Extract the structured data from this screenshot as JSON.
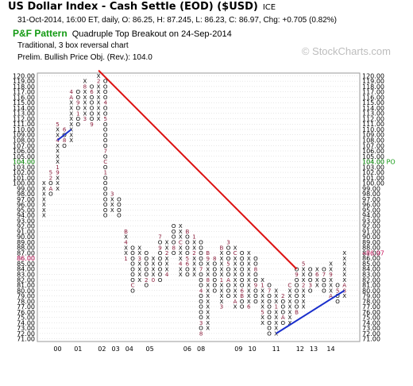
{
  "header": {
    "title": "US Dollar Index - Cash Settle (EOD) ($USD)",
    "exchange": "ICE",
    "quote": "31-Oct-2014, 16:00 ET, daily, O: 86.25, H: 87.245, L: 86.23, C: 86.97, Chg: +0.705 (0.82%)",
    "pattern_label": "P&F Pattern",
    "pattern_text": "Quadruple Top Breakout on 24-Sep-2014",
    "method": "Traditional, 3 box reversal chart",
    "price_objective": "Prelim. Bullish Price Obj. (Rev.): 104.0",
    "watermark": "© StockCharts.com"
  },
  "colors": {
    "x_mark": "#000000",
    "o_mark": "#000000",
    "month_mark": "#8b1c3a",
    "resistance_line": "#dd1111",
    "support_line": "#1a2fcc",
    "price_objective": "#129a12",
    "last_price": "#cc2266",
    "grid": "#cfcfcf"
  },
  "chart_data": {
    "type": "point-and-figure",
    "box_size": 1,
    "reversal": 3,
    "ylim": [
      71,
      120
    ],
    "y_ticks": [
      71,
      72,
      73,
      74,
      75,
      76,
      77,
      78,
      79,
      80,
      81,
      82,
      83,
      84,
      85,
      86,
      87,
      88,
      89,
      90,
      91,
      92,
      93,
      94,
      95,
      96,
      97,
      98,
      99,
      100,
      101,
      102,
      103,
      104,
      105,
      106,
      107,
      108,
      109,
      110,
      111,
      112,
      113,
      114,
      115,
      116,
      117,
      118,
      119,
      120
    ],
    "x_labels": [
      {
        "col": 2,
        "text": "00"
      },
      {
        "col": 5,
        "text": "01"
      },
      {
        "col": 8.5,
        "text": "02"
      },
      {
        "col": 10.5,
        "text": "03"
      },
      {
        "col": 12.5,
        "text": "04"
      },
      {
        "col": 15.5,
        "text": "05"
      },
      {
        "col": 21,
        "text": "06"
      },
      {
        "col": 23,
        "text": "08"
      },
      {
        "col": 28.5,
        "text": "09"
      },
      {
        "col": 30.5,
        "text": "10"
      },
      {
        "col": 34,
        "text": "11"
      },
      {
        "col": 37.5,
        "text": "12"
      },
      {
        "col": 39.5,
        "text": "13"
      },
      {
        "col": 42,
        "text": "14"
      }
    ],
    "columns": [
      {
        "col": 0,
        "type": "X",
        "low": 94,
        "high": 100,
        "marks": {
          "103": "7"
        }
      },
      {
        "col": 1,
        "type": "O",
        "low": 98,
        "high": 102,
        "marks": {
          "102": "5",
          "101": "2",
          "99": "A"
        }
      },
      {
        "col": 2,
        "type": "X",
        "low": 99,
        "high": 111,
        "marks": {
          "102": "9",
          "103": "1",
          "108": "4",
          "111": "5"
        }
      },
      {
        "col": 3,
        "type": "O",
        "low": 107,
        "high": 110,
        "marks": {
          "110": "6",
          "108": "8"
        }
      },
      {
        "col": 4,
        "type": "X",
        "low": 108,
        "high": 117,
        "marks": {
          "116": "A",
          "117": "4"
        }
      },
      {
        "col": 5,
        "type": "O",
        "low": 111,
        "high": 117,
        "marks": {
          "118": "6",
          "115": "9",
          "113": "1"
        }
      },
      {
        "col": 6,
        "type": "X",
        "low": 112,
        "high": 119,
        "marks": {
          "118": "8",
          "112": "3"
        }
      },
      {
        "col": 7,
        "type": "O",
        "low": 111,
        "high": 118,
        "marks": {
          "117": "6",
          "111": "9"
        }
      },
      {
        "col": 8,
        "type": "X",
        "low": 112,
        "high": 120,
        "marks": {
          "119": "2"
        }
      },
      {
        "col": 9,
        "type": "O",
        "low": 94,
        "high": 119,
        "marks": {
          "115": "4",
          "112": "5",
          "106": "7",
          "104": "C",
          "102": "1"
        }
      },
      {
        "col": 10,
        "type": "X",
        "low": 95,
        "high": 98,
        "marks": {
          "98": "3"
        }
      },
      {
        "col": 11,
        "type": "O",
        "low": 94,
        "high": 97,
        "marks": {
          "98": "9"
        }
      },
      {
        "col": 12,
        "type": "X",
        "low": 86,
        "high": 91,
        "marks": {
          "91": "B",
          "89": "4",
          "86": "1"
        }
      },
      {
        "col": 13,
        "type": "O",
        "low": 80,
        "high": 88,
        "marks": {
          "90": "C",
          "81": "C"
        }
      },
      {
        "col": 14,
        "type": "X",
        "low": 82,
        "high": 88,
        "marks": {
          "89": "4",
          "86": "3"
        }
      },
      {
        "col": 15,
        "type": "O",
        "low": 81,
        "high": 87,
        "marks": {
          "89": "7",
          "82": "2"
        }
      },
      {
        "col": 16,
        "type": "X",
        "low": 82,
        "high": 86,
        "marks": {
          "82": "0"
        }
      },
      {
        "col": 17,
        "type": "O",
        "low": 82,
        "high": 90,
        "marks": {
          "90": "7",
          "88": "9"
        }
      },
      {
        "col": 18,
        "type": "X",
        "low": 83,
        "high": 89,
        "marks": {
          "87": "2",
          "83": "4"
        }
      },
      {
        "col": 19,
        "type": "O",
        "low": 87,
        "high": 92,
        "marks": {
          "88": "8"
        }
      },
      {
        "col": 20,
        "type": "X",
        "low": 83,
        "high": 92,
        "marks": {
          "89": "C",
          "85": "4"
        }
      },
      {
        "col": 21,
        "type": "O",
        "low": 83,
        "high": 91,
        "marks": {
          "91": "B",
          "86": "5",
          "85": "6"
        }
      },
      {
        "col": 22,
        "type": "X",
        "low": 83,
        "high": 90,
        "marks": {
          "90": "1",
          "87": "2"
        }
      },
      {
        "col": 23,
        "type": "O",
        "low": 72,
        "high": 89,
        "marks": {
          "84": "7",
          "80": "4",
          "74": "3",
          "72": "8"
        }
      },
      {
        "col": 24,
        "type": "X",
        "low": 73,
        "high": 87,
        "marks": {
          "87": "B",
          "86": "9",
          "82": "8"
        }
      },
      {
        "col": 25,
        "type": "O",
        "low": 80,
        "high": 86,
        "marks": {
          "86": "8"
        }
      },
      {
        "col": 26,
        "type": "X",
        "low": 77,
        "high": 88,
        "marks": {
          "88": "B",
          "82": "1",
          "77": "3"
        }
      },
      {
        "col": 27,
        "type": "O",
        "low": 79,
        "high": 89,
        "marks": {
          "89": "3",
          "85": "5",
          "82": "A"
        }
      },
      {
        "col": 28,
        "type": "X",
        "low": 77,
        "high": 88,
        "marks": {
          "78": "A",
          "87": "C"
        }
      },
      {
        "col": 29,
        "type": "O",
        "low": 77,
        "high": 87,
        "marks": {
          "88": "2",
          "80": "6",
          "79": "B"
        }
      },
      {
        "col": 30,
        "type": "X",
        "low": 77,
        "high": 87,
        "marks": {
          "77": "6"
        }
      },
      {
        "col": 31,
        "type": "O",
        "low": 78,
        "high": 86,
        "marks": {
          "84": "8",
          "81": "9"
        }
      },
      {
        "col": 32,
        "type": "X",
        "low": 74,
        "high": 82,
        "marks": {
          "81": "1",
          "76": "5"
        }
      },
      {
        "col": 33,
        "type": "O",
        "low": 72,
        "high": 81,
        "marks": {
          "80": "7"
        }
      },
      {
        "col": 34,
        "type": "X",
        "low": 72,
        "high": 80,
        "marks": {
          "77": "1"
        }
      },
      {
        "col": 35,
        "type": "O",
        "low": 74,
        "high": 79,
        "marks": {
          "79": "2",
          "75": "A"
        }
      },
      {
        "col": 36,
        "type": "X",
        "low": 74,
        "high": 81,
        "marks": {
          "81": "C"
        }
      },
      {
        "col": 37,
        "type": "O",
        "low": 76,
        "high": 84,
        "marks": {
          "83": "9",
          "76": "B"
        }
      },
      {
        "col": 38,
        "type": "X",
        "low": 77,
        "high": 85,
        "marks": {
          "85": "5",
          "81": "2"
        }
      },
      {
        "col": 39,
        "type": "O",
        "low": 80,
        "high": 84,
        "marks": {
          "81": "3"
        }
      },
      {
        "col": 40,
        "type": "X",
        "low": 81,
        "high": 84,
        "marks": {
          "83": "6"
        }
      },
      {
        "col": 41,
        "type": "O",
        "low": 80,
        "high": 84,
        "marks": {
          "83": "7"
        }
      },
      {
        "col": 42,
        "type": "X",
        "low": 79,
        "high": 85,
        "marks": {
          "83": "9",
          "79": "A"
        }
      },
      {
        "col": 43,
        "type": "O",
        "low": 78,
        "high": 81,
        "marks": {
          "80": "5"
        }
      },
      {
        "col": 44,
        "type": "X",
        "low": 79,
        "high": 87,
        "marks": {
          "80": "8",
          "81": "A",
          "88": "A"
        }
      }
    ],
    "trend_lines": [
      {
        "kind": "resistance",
        "points": [
          [
            8,
            121
          ],
          [
            37,
            84
          ]
        ]
      },
      {
        "kind": "support",
        "points": [
          [
            34,
            72
          ],
          [
            44,
            80
          ]
        ]
      },
      {
        "kind": "support",
        "points": [
          [
            2,
            108
          ],
          [
            4,
            110
          ]
        ]
      }
    ],
    "price_objective": {
      "value": 104.0,
      "label": "104.00",
      "tag": "PO"
    },
    "last_price": {
      "value": 86.97,
      "label": "86.97",
      "left_label": "86.00"
    }
  }
}
